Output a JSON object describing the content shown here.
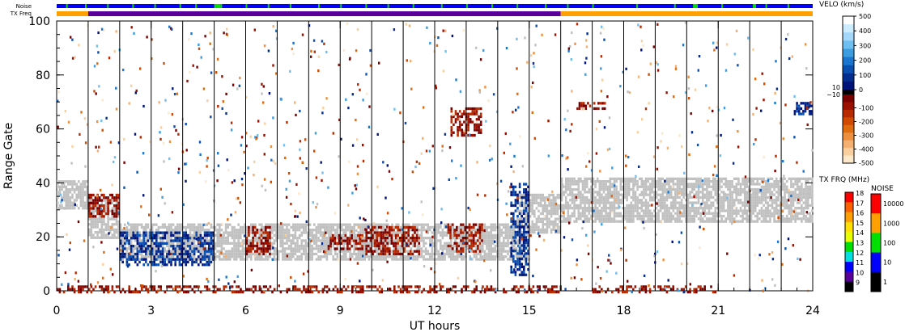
{
  "chart_data": [
    {
      "type": "heatmap",
      "xlabel": "UT hours",
      "ylabel": "Range Gate",
      "xlim": [
        0,
        24
      ],
      "ylim": [
        0,
        100
      ],
      "xticks": [
        0,
        3,
        6,
        9,
        12,
        15,
        18,
        21,
        24
      ],
      "yticks": [
        0,
        20,
        40,
        60,
        80,
        100
      ],
      "scan_boundaries_hours": [
        1,
        2,
        3,
        4,
        5,
        6,
        7,
        8,
        9,
        10,
        11,
        12,
        13,
        14,
        15,
        16,
        17,
        18,
        19,
        20,
        21,
        22,
        23
      ],
      "ground_scatter": [
        {
          "x": [
            0,
            1
          ],
          "y": [
            31,
            41
          ]
        },
        {
          "x": [
            1,
            2
          ],
          "y": [
            20,
            34
          ]
        },
        {
          "x": [
            2,
            15
          ],
          "y": [
            12,
            25
          ]
        },
        {
          "x": [
            14.6,
            16
          ],
          "y": [
            22,
            36
          ]
        },
        {
          "x": [
            16,
            24
          ],
          "y": [
            26,
            42
          ]
        }
      ],
      "velocity_bands": [
        {
          "x": [
            1,
            2
          ],
          "y": [
            28,
            36
          ],
          "sign": "negative"
        },
        {
          "x": [
            2,
            5
          ],
          "y": [
            10,
            22
          ],
          "sign": "positive"
        },
        {
          "x": [
            6,
            6.8
          ],
          "y": [
            14,
            24
          ],
          "sign": "negative"
        },
        {
          "x": [
            8.6,
            9.8
          ],
          "y": [
            16,
            21
          ],
          "sign": "negative"
        },
        {
          "x": [
            9.8,
            11.5
          ],
          "y": [
            14,
            24
          ],
          "sign": "negative"
        },
        {
          "x": [
            12.4,
            13.5
          ],
          "y": [
            15,
            25
          ],
          "sign": "negative"
        },
        {
          "x": [
            14.4,
            15
          ],
          "y": [
            6,
            40
          ],
          "sign": "positive"
        },
        {
          "x": [
            12.5,
            13.5
          ],
          "y": [
            58,
            68
          ],
          "sign": "negative"
        },
        {
          "x": [
            23.4,
            24
          ],
          "y": [
            66,
            70
          ],
          "sign": "positive"
        },
        {
          "x": [
            16.5,
            17.5
          ],
          "y": [
            68,
            70
          ],
          "sign": "negative"
        },
        {
          "x": [
            0,
            16
          ],
          "y": [
            0,
            2
          ],
          "sign": "negative"
        },
        {
          "x": [
            17,
            21
          ],
          "y": [
            0,
            2
          ],
          "sign": "negative"
        }
      ]
    },
    {
      "type": "heatmap",
      "title": "VELO (km/s)",
      "ticks": [
        500,
        400,
        300,
        200,
        100,
        0
      ],
      "ticks_negative": [
        -100,
        -200,
        -300,
        -400,
        -500
      ],
      "zero_labels": [
        "10",
        "−10"
      ],
      "positive_colors": [
        "#ffffff",
        "#ccecff",
        "#a3d8fa",
        "#6fbff0",
        "#3c9de0",
        "#1a76cf",
        "#0b4fb0",
        "#032e8f",
        "#00137a"
      ],
      "negative_colors": [
        "#7a0000",
        "#9c1000",
        "#b82a00",
        "#d04a00",
        "#e06c10",
        "#ec9040",
        "#f4b070",
        "#f9cfa0",
        "#fde8cc"
      ],
      "ground_scatter_color": "#c0c0c0"
    },
    {
      "type": "heatmap",
      "title": "TX FRQ (MHz)",
      "ticks": [
        18,
        17,
        16,
        15,
        14,
        13,
        12,
        11,
        10,
        9
      ],
      "colors": [
        "#ff0000",
        "#ff6000",
        "#ffa000",
        "#ffe000",
        "#e8ff00",
        "#00e000",
        "#00e0e0",
        "#0000ff",
        "#5a009a",
        "#000000"
      ]
    },
    {
      "type": "heatmap",
      "title": "NOISE",
      "ticks": [
        10000,
        1000,
        100,
        10,
        1
      ],
      "colors": [
        "#ff0000",
        "#ffa000",
        "#00e000",
        "#0000ff",
        "#000000"
      ]
    }
  ],
  "bars": {
    "noise_label": "Noise",
    "txfreq_label": "TX Freq",
    "noise_color": "#0000ff",
    "noise_green_hours": [
      0.3,
      0.9,
      1.6,
      2.4,
      3.1,
      3.9,
      4.4,
      5.2,
      6.0,
      6.7,
      7.4,
      8.3,
      9.0,
      9.8,
      10.5,
      11.3,
      12.2,
      13.0,
      13.8,
      14.6,
      15.5,
      16.2,
      17.0,
      18.4,
      19.6,
      20.3,
      21.1,
      22.5,
      23.2
    ],
    "noise_green_blocks": [
      [
        5.0,
        5.2
      ],
      [
        20.2,
        20.35
      ],
      [
        22.1,
        22.2
      ]
    ],
    "txfreq_segments": [
      {
        "from": 0,
        "to": 1,
        "color": "#ffa000"
      },
      {
        "from": 1,
        "to": 16,
        "color": "#5a009a"
      },
      {
        "from": 16,
        "to": 24,
        "color": "#ffa000"
      }
    ]
  }
}
